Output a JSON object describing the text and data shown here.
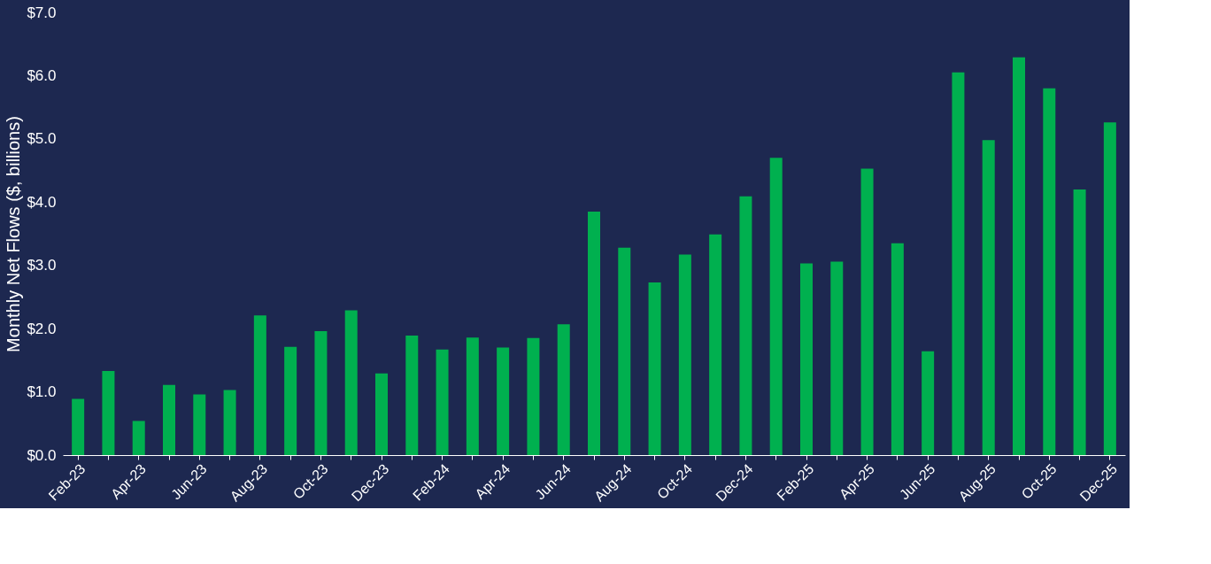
{
  "chart_data": {
    "type": "bar",
    "ylabel": "Monthly Net Flows ($, billions)",
    "categories": [
      "Feb-23",
      null,
      "Apr-23",
      null,
      "Jun-23",
      null,
      "Aug-23",
      null,
      "Oct-23",
      null,
      "Dec-23",
      null,
      "Feb-24",
      null,
      "Apr-24",
      null,
      "Jun-24",
      null,
      "Aug-24",
      null,
      "Oct-24",
      null,
      "Dec-24",
      null,
      "Feb-25",
      null,
      "Apr-25",
      null,
      "Jun-25",
      null,
      "Aug-25",
      null,
      "Oct-25",
      null,
      "Dec-25"
    ],
    "values": [
      0.89,
      1.33,
      0.54,
      1.11,
      0.96,
      1.03,
      2.21,
      1.71,
      1.96,
      2.29,
      1.29,
      1.89,
      1.67,
      1.86,
      1.7,
      1.85,
      2.07,
      3.85,
      3.28,
      2.73,
      3.17,
      3.49,
      4.09,
      4.7,
      3.03,
      3.06,
      4.53,
      3.35,
      1.64,
      6.05,
      4.98,
      6.29,
      5.8,
      4.2,
      5.26
    ],
    "color": "#00b04f",
    "ylim": [
      0,
      7
    ],
    "yticks": [
      {
        "value": 0,
        "label": "$0.0"
      },
      {
        "value": 1,
        "label": "$1.0"
      },
      {
        "value": 2,
        "label": "$2.0"
      },
      {
        "value": 3,
        "label": "$3.0"
      },
      {
        "value": 4,
        "label": "$4.0"
      },
      {
        "value": 5,
        "label": "$5.0"
      },
      {
        "value": 6,
        "label": "$6.0"
      },
      {
        "value": 7,
        "label": "$7.0"
      }
    ],
    "grid": false
  }
}
